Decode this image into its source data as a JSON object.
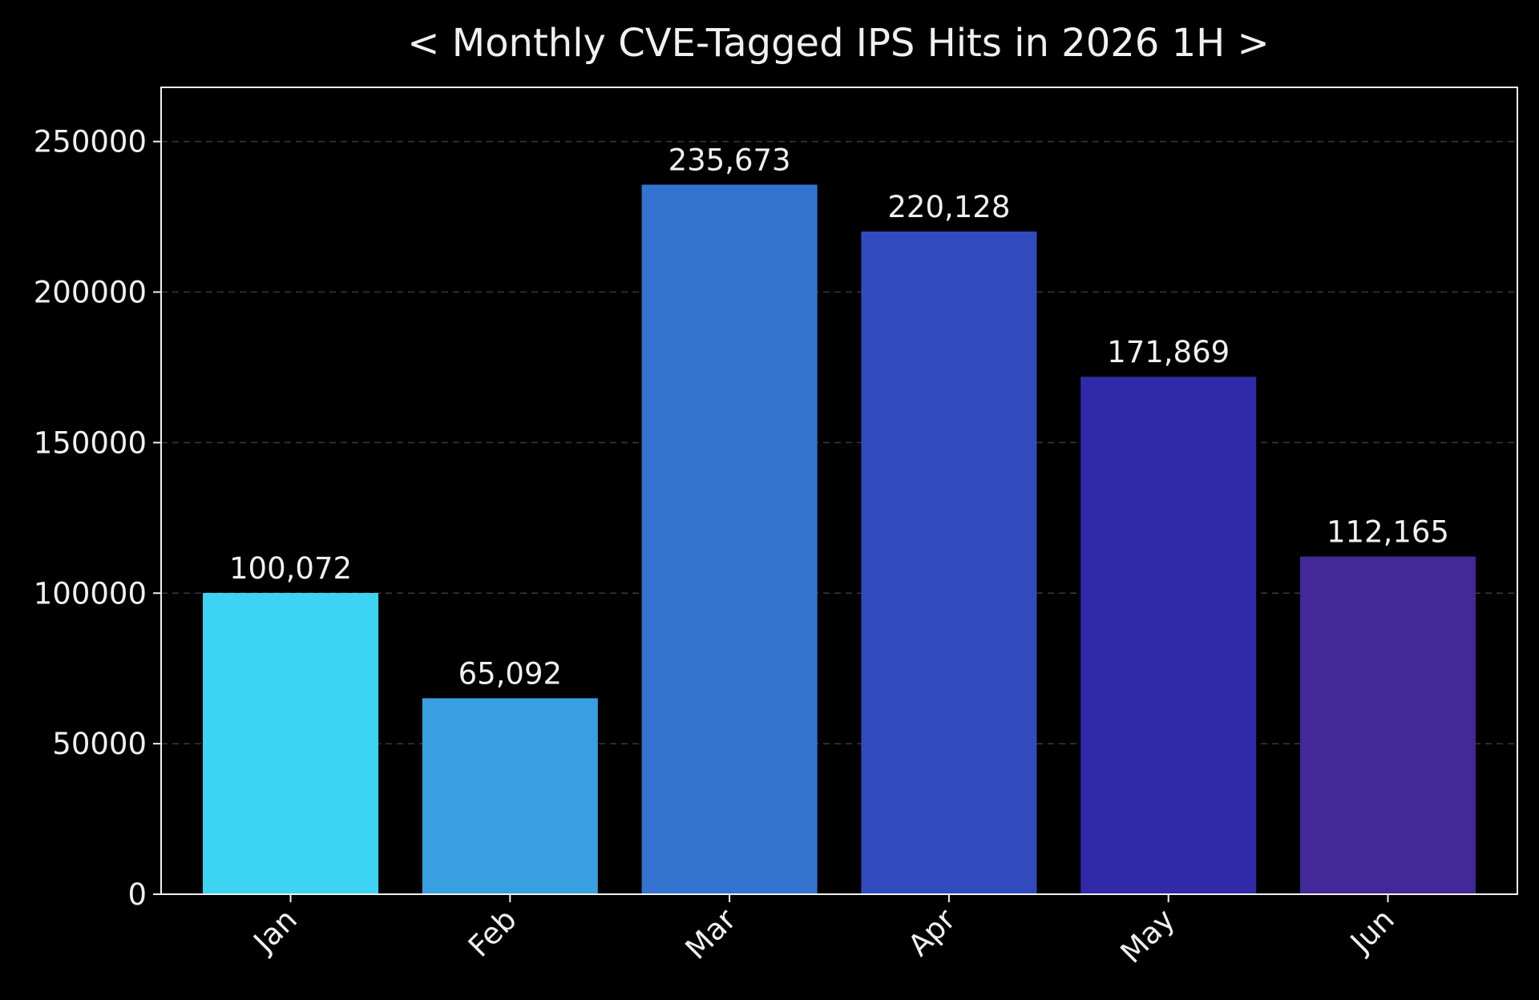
{
  "chart_data": {
    "type": "bar",
    "title": "< Monthly CVE-Tagged IPS Hits in 2026 1H >",
    "xlabel": "",
    "ylabel": "",
    "categories": [
      "Jan",
      "Feb",
      "Mar",
      "Apr",
      "May",
      "Jun"
    ],
    "values": [
      100072,
      65092,
      235673,
      220128,
      171869,
      112165
    ],
    "value_labels": [
      "100,072",
      "65,092",
      "235,673",
      "220,128",
      "171,869",
      "112,165"
    ],
    "colors": [
      "#3dd3f2",
      "#389fe0",
      "#3474d0",
      "#314bbf",
      "#312aa8",
      "#432897"
    ],
    "ylim": [
      0,
      268000
    ],
    "yticks": [
      0,
      50000,
      100000,
      150000,
      200000,
      250000
    ],
    "ytick_labels": [
      "0",
      "50000",
      "100000",
      "150000",
      "200000",
      "250000"
    ],
    "grid": true,
    "background": "#000000",
    "text_color": "#f0f0f0"
  }
}
